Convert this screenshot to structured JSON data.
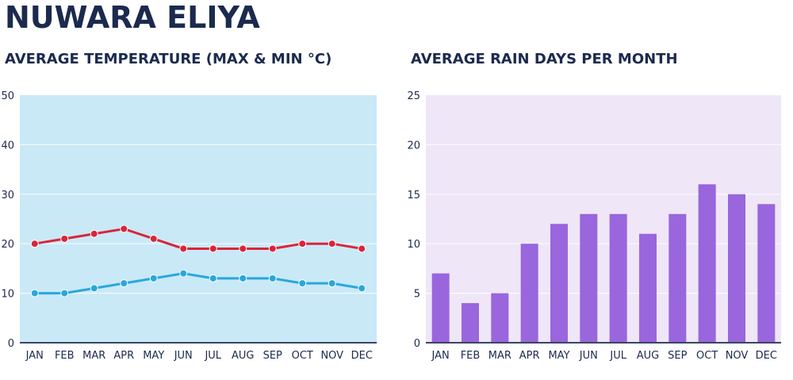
{
  "page_title": "NUWARA ELIYA",
  "chart_data": [
    {
      "type": "line",
      "title": "AVERAGE TEMPERATURE (MAX & MIN °C)",
      "categories": [
        "JAN",
        "FEB",
        "MAR",
        "APR",
        "MAY",
        "JUN",
        "JUL",
        "AUG",
        "SEP",
        "OCT",
        "NOV",
        "DEC"
      ],
      "series": [
        {
          "values": [
            20,
            21,
            22,
            23,
            21,
            19,
            19,
            19,
            19,
            20,
            20,
            19
          ],
          "color": "#d9253a"
        },
        {
          "values": [
            10,
            10,
            11,
            12,
            13,
            14,
            13,
            13,
            13,
            12,
            12,
            11
          ],
          "color": "#2aa7dc"
        }
      ],
      "ylim": [
        0,
        50
      ],
      "yticks": [
        0,
        10,
        20,
        30,
        40,
        50
      ],
      "grid": true,
      "background": "#c9e9f7"
    },
    {
      "type": "bar",
      "title": "AVERAGE RAIN DAYS PER MONTH",
      "categories": [
        "JAN",
        "FEB",
        "MAR",
        "APR",
        "MAY",
        "JUN",
        "JUL",
        "AUG",
        "SEP",
        "OCT",
        "NOV",
        "DEC"
      ],
      "values": [
        7,
        4,
        5,
        10,
        12,
        13,
        13,
        11,
        13,
        16,
        15,
        14
      ],
      "color": "#9966dd",
      "ylim": [
        0,
        25
      ],
      "yticks": [
        0,
        5,
        10,
        15,
        20,
        25
      ],
      "grid": true,
      "background": "#efe6f8"
    }
  ]
}
